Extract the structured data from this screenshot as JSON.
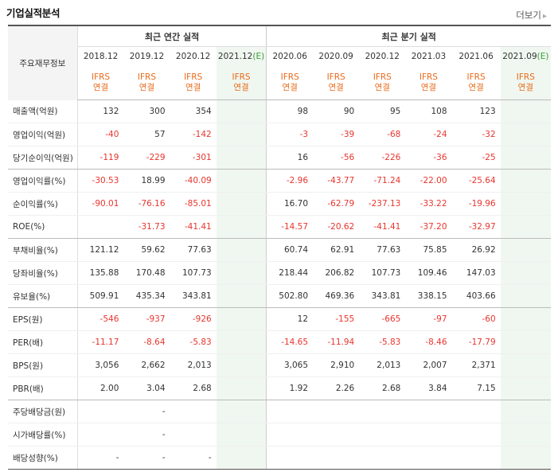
{
  "header": {
    "title": "기업실적분석",
    "more_label": "더보기",
    "more_icon": "chevron-right-icon"
  },
  "table": {
    "group_label": "주요재무정보",
    "annual_label": "최근 연간 실적",
    "quarter_label": "최근 분기 실적",
    "periods": [
      {
        "base": "2018.12",
        "est": ""
      },
      {
        "base": "2019.12",
        "est": ""
      },
      {
        "base": "2020.12",
        "est": ""
      },
      {
        "base": "2021.12",
        "est": "(E)"
      },
      {
        "base": "2020.06",
        "est": ""
      },
      {
        "base": "2020.09",
        "est": ""
      },
      {
        "base": "2020.12",
        "est": ""
      },
      {
        "base": "2021.03",
        "est": ""
      },
      {
        "base": "2021.06",
        "est": ""
      },
      {
        "base": "2021.09",
        "est": "(E)"
      }
    ],
    "ifrs_line1": "IFRS",
    "ifrs_line2": "연결",
    "rows": [
      {
        "label": "매출액(억원)",
        "values": [
          "132",
          "300",
          "354",
          "",
          "98",
          "90",
          "95",
          "108",
          "123",
          ""
        ]
      },
      {
        "label": "영업이익(억원)",
        "values": [
          "-40",
          "57",
          "-142",
          "",
          "-3",
          "-39",
          "-68",
          "-24",
          "-32",
          ""
        ]
      },
      {
        "label": "당기순이익(억원)",
        "values": [
          "-119",
          "-229",
          "-301",
          "",
          "16",
          "-56",
          "-226",
          "-36",
          "-25",
          ""
        ]
      },
      {
        "label": "영업이익률(%)",
        "values": [
          "-30.53",
          "18.99",
          "-40.09",
          "",
          "-2.96",
          "-43.77",
          "-71.24",
          "-22.00",
          "-25.64",
          ""
        ]
      },
      {
        "label": "순이익률(%)",
        "values": [
          "-90.01",
          "-76.16",
          "-85.01",
          "",
          "16.70",
          "-62.79",
          "-237.13",
          "-33.22",
          "-19.96",
          ""
        ]
      },
      {
        "label": "ROE(%)",
        "values": [
          "",
          "-31.73",
          "-41.41",
          "",
          "-14.57",
          "-20.62",
          "-41.41",
          "-37.20",
          "-32.97",
          ""
        ]
      },
      {
        "label": "부채비율(%)",
        "values": [
          "121.12",
          "59.62",
          "77.63",
          "",
          "60.74",
          "62.91",
          "77.63",
          "75.85",
          "26.92",
          ""
        ]
      },
      {
        "label": "당좌비율(%)",
        "values": [
          "135.88",
          "170.48",
          "107.73",
          "",
          "218.44",
          "206.82",
          "107.73",
          "109.46",
          "147.03",
          ""
        ]
      },
      {
        "label": "유보율(%)",
        "values": [
          "509.91",
          "435.34",
          "343.81",
          "",
          "502.80",
          "469.36",
          "343.81",
          "338.15",
          "403.66",
          ""
        ]
      },
      {
        "label": "EPS(원)",
        "values": [
          "-546",
          "-937",
          "-926",
          "",
          "12",
          "-155",
          "-665",
          "-97",
          "-60",
          ""
        ]
      },
      {
        "label": "PER(배)",
        "values": [
          "-11.17",
          "-8.64",
          "-5.83",
          "",
          "-14.65",
          "-11.94",
          "-5.83",
          "-8.46",
          "-17.79",
          ""
        ]
      },
      {
        "label": "BPS(원)",
        "values": [
          "3,056",
          "2,662",
          "2,013",
          "",
          "3,065",
          "2,910",
          "2,013",
          "2,007",
          "2,371",
          ""
        ]
      },
      {
        "label": "PBR(배)",
        "values": [
          "2.00",
          "3.04",
          "2.68",
          "",
          "1.92",
          "2.26",
          "2.68",
          "3.84",
          "7.15",
          ""
        ]
      },
      {
        "label": "주당배당금(원)",
        "values": [
          "",
          "-",
          "",
          "",
          "",
          "",
          "",
          "",
          "",
          ""
        ]
      },
      {
        "label": "시가배당률(%)",
        "values": [
          "",
          "-",
          "",
          "",
          "",
          "",
          "",
          "",
          "",
          ""
        ]
      },
      {
        "label": "배당성향(%)",
        "values": [
          "-",
          "-",
          "-",
          "",
          "",
          "",
          "",
          "",
          "",
          ""
        ]
      }
    ]
  },
  "colors": {
    "negative": "#e8352e",
    "ifrs": "#e86a1a",
    "estimate": "#3a9b3a",
    "estimate_bg": "#f0f7f0"
  }
}
